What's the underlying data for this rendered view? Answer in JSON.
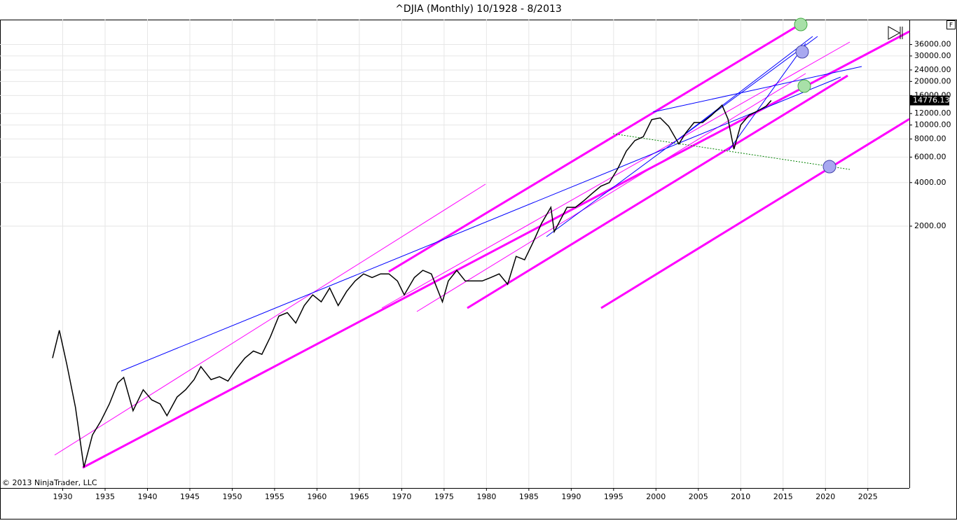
{
  "chart_data": {
    "type": "line",
    "title": "^DJIA (Monthly)  10/1928 - 8/2013",
    "copyright": "© 2013 NinjaTrader, LLC",
    "panel_button": "F",
    "log_scale": true,
    "grid": true,
    "xlim": [
      1922.6,
      2029.9
    ],
    "xticks": [
      1930,
      1935,
      1940,
      1945,
      1950,
      1955,
      1960,
      1965,
      1970,
      1975,
      1980,
      1985,
      1990,
      1995,
      2000,
      2005,
      2010,
      2015,
      2020,
      2025
    ],
    "ylim": [
      31,
      53500
    ],
    "yticks": [
      {
        "value": 2000,
        "label": "2000.00"
      },
      {
        "value": 4000,
        "label": "4000.00"
      },
      {
        "value": 6000,
        "label": "6000.00"
      },
      {
        "value": 8000,
        "label": "8000.00"
      },
      {
        "value": 10000,
        "label": "10000.00"
      },
      {
        "value": 12000,
        "label": "12000.00"
      },
      {
        "value": 16000,
        "label": "16000.00"
      },
      {
        "value": 20000,
        "label": "20000.00"
      },
      {
        "value": 24000,
        "label": "24000.00"
      },
      {
        "value": 30000,
        "label": "30000.00"
      },
      {
        "value": 36000,
        "label": "36000.00"
      }
    ],
    "last_price": 14776.13,
    "series": [
      {
        "name": "^DJIA",
        "color": "#000000",
        "x": [
          1928.8,
          1929.6,
          1930.5,
          1931.5,
          1932.5,
          1933.5,
          1934.5,
          1935.5,
          1936.5,
          1937.2,
          1938.3,
          1939.5,
          1940.5,
          1941.5,
          1942.3,
          1943.5,
          1944.5,
          1945.5,
          1946.3,
          1947.5,
          1948.5,
          1949.5,
          1950.5,
          1951.5,
          1952.5,
          1953.5,
          1954.5,
          1955.5,
          1956.5,
          1957.5,
          1958.5,
          1959.5,
          1960.5,
          1961.5,
          1962.5,
          1963.5,
          1964.5,
          1965.5,
          1966.5,
          1967.5,
          1968.5,
          1969.5,
          1970.3,
          1971.5,
          1972.5,
          1973.5,
          1974.8,
          1975.5,
          1976.5,
          1977.5,
          1978.5,
          1979.5,
          1980.5,
          1981.5,
          1982.5,
          1983.5,
          1984.5,
          1985.5,
          1986.5,
          1987.6,
          1988.0,
          1989.5,
          1990.5,
          1991.5,
          1992.5,
          1993.5,
          1994.5,
          1995.5,
          1996.5,
          1997.5,
          1998.5,
          1999.5,
          2000.5,
          2001.5,
          2002.7,
          2003.5,
          2004.5,
          2005.5,
          2006.5,
          2007.8,
          2008.5,
          2009.2,
          2010.0,
          2011.0,
          2012.0,
          2013.0,
          2013.6
        ],
        "values": [
          245,
          381,
          219,
          112,
          43,
          72,
          90,
          118,
          165,
          180,
          106,
          148,
          126,
          118,
          98,
          132,
          148,
          174,
          214,
          174,
          182,
          170,
          207,
          245,
          274,
          260,
          343,
          478,
          505,
          428,
          565,
          670,
          600,
          748,
          565,
          708,
          836,
          935,
          883,
          935,
          935,
          836,
          670,
          883,
          990,
          935,
          600,
          836,
          990,
          836,
          836,
          836,
          883,
          935,
          792,
          1236,
          1170,
          1546,
          2090,
          2700,
          1830,
          2700,
          2700,
          3000,
          3380,
          3780,
          4000,
          5000,
          6600,
          7800,
          8300,
          10900,
          11200,
          9800,
          7400,
          8780,
          10400,
          10400,
          11600,
          13700,
          11000,
          6800,
          10000,
          11700,
          12500,
          13500,
          14776.13
        ]
      }
    ]
  }
}
